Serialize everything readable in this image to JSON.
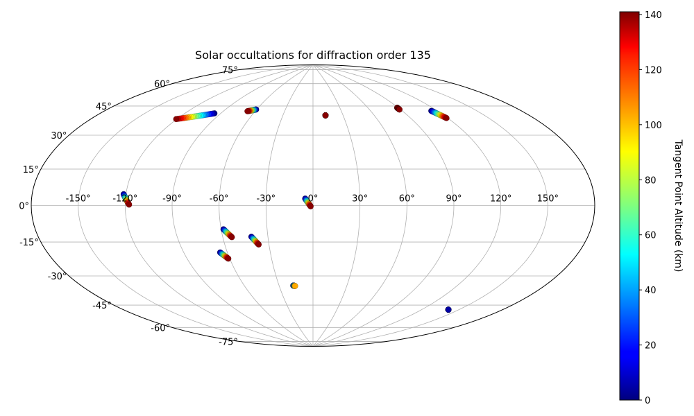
{
  "chart_data": {
    "type": "scatter",
    "projection": "aitoff",
    "title": "Solar occultations for diffraction order 135",
    "longitude_ticks": [
      {
        "value": -150,
        "label": "-150°"
      },
      {
        "value": -120,
        "label": "-120°"
      },
      {
        "value": -90,
        "label": "-90°"
      },
      {
        "value": -60,
        "label": "-60°"
      },
      {
        "value": -30,
        "label": "-30°"
      },
      {
        "value": 0,
        "label": "0°"
      },
      {
        "value": 30,
        "label": "30°"
      },
      {
        "value": 60,
        "label": "60°"
      },
      {
        "value": 90,
        "label": "90°"
      },
      {
        "value": 120,
        "label": "120°"
      },
      {
        "value": 150,
        "label": "150°"
      }
    ],
    "latitude_ticks": [
      {
        "value": 75,
        "label": "75°"
      },
      {
        "value": 60,
        "label": "60°"
      },
      {
        "value": 45,
        "label": "45°"
      },
      {
        "value": 30,
        "label": "30°"
      },
      {
        "value": 15,
        "label": "15°"
      },
      {
        "value": 0,
        "label": "0°"
      },
      {
        "value": -15,
        "label": "-15°"
      },
      {
        "value": -30,
        "label": "-30°"
      },
      {
        "value": -45,
        "label": "-45°"
      },
      {
        "value": -60,
        "label": "-60°"
      },
      {
        "value": -75,
        "label": "-75°"
      }
    ],
    "grid": true,
    "colorbar": {
      "label": "Tangent Point Altitude (km)",
      "colormap": "jet",
      "range": [
        0,
        141
      ],
      "ticks": [
        {
          "value": 0,
          "label": "0"
        },
        {
          "value": 20,
          "label": "20"
        },
        {
          "value": 40,
          "label": "40"
        },
        {
          "value": 60,
          "label": "60"
        },
        {
          "value": 80,
          "label": "80"
        },
        {
          "value": 100,
          "label": "100"
        },
        {
          "value": 120,
          "label": "120"
        },
        {
          "value": 140,
          "label": "140"
        }
      ]
    },
    "occultations": [
      {
        "start": {
          "lon": -95.5,
          "lat": 54.2,
          "alt": 0
        },
        "end": {
          "lon": -120.5,
          "lat": 47.7,
          "alt": 140
        }
      },
      {
        "start": {
          "lon": -60.5,
          "lat": 59.6,
          "alt": 0
        },
        "end": {
          "lon": -67.5,
          "lat": 58.0,
          "alt": 140
        }
      },
      {
        "start": {
          "lon": 12.5,
          "lat": 57.6,
          "alt": 135
        },
        "end": {
          "lon": 12.5,
          "lat": 57.6,
          "alt": 140
        }
      },
      {
        "start": {
          "lon": 89.0,
          "lat": 58.5,
          "alt": 135
        },
        "end": {
          "lon": 89.0,
          "lat": 57.3,
          "alt": 140
        }
      },
      {
        "start": {
          "lon": 115.0,
          "lat": 53.5,
          "alt": 0
        },
        "end": {
          "lon": 119.0,
          "lat": 48.5,
          "alt": 140
        }
      },
      {
        "start": {
          "lon": -121.5,
          "lat": 6.0,
          "alt": 0
        },
        "end": {
          "lon": -117.5,
          "lat": 0.5,
          "alt": 140
        }
      },
      {
        "start": {
          "lon": -5.0,
          "lat": 4.5,
          "alt": 0
        },
        "end": {
          "lon": -1.5,
          "lat": -0.5,
          "alt": 140
        }
      },
      {
        "start": {
          "lon": -58.5,
          "lat": -14.5,
          "alt": 0
        },
        "end": {
          "lon": -54.0,
          "lat": -19.5,
          "alt": 140
        }
      },
      {
        "start": {
          "lon": -41.0,
          "lat": -19.5,
          "alt": 0
        },
        "end": {
          "lon": -37.0,
          "lat": -24.5,
          "alt": 140
        }
      },
      {
        "start": {
          "lon": -65.0,
          "lat": -28.5,
          "alt": 0
        },
        "end": {
          "lon": -61.0,
          "lat": -32.5,
          "alt": 140
        }
      },
      {
        "start": {
          "lon": -17.5,
          "lat": -51.0,
          "alt": 0
        },
        "end": {
          "lon": -16.0,
          "lat": -51.3,
          "alt": 100
        }
      },
      {
        "start": {
          "lon": 142.0,
          "lat": -55.5,
          "alt": 0
        },
        "end": {
          "lon": 142.0,
          "lat": -55.5,
          "alt": 5
        }
      }
    ]
  }
}
